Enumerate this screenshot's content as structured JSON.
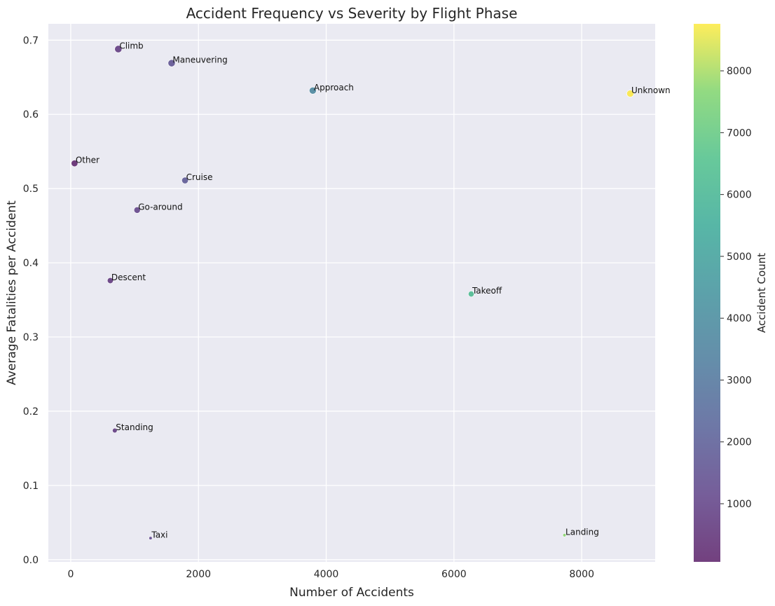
{
  "chart_data": {
    "type": "scatter",
    "title": "Accident Frequency vs Severity by Flight Phase",
    "xlabel": "Number of Accidents",
    "ylabel": "Average Fatalities per Accident",
    "xlim": [
      -350,
      9150
    ],
    "ylim": [
      -0.003,
      0.722
    ],
    "xticks": [
      0,
      2000,
      4000,
      6000,
      8000
    ],
    "yticks": [
      0.0,
      0.1,
      0.2,
      0.3,
      0.4,
      0.5,
      0.6,
      0.7
    ],
    "grid": true,
    "colorbar": {
      "label": "Accident Count",
      "colormap": "viridis",
      "range": [
        60,
        8760
      ],
      "ticks": [
        1000,
        2000,
        3000,
        4000,
        5000,
        6000,
        7000,
        8000
      ]
    },
    "points": [
      {
        "label": "Climb",
        "x": 745,
        "y": 0.688
      },
      {
        "label": "Maneuvering",
        "x": 1580,
        "y": 0.669
      },
      {
        "label": "Approach",
        "x": 3790,
        "y": 0.632
      },
      {
        "label": "Unknown",
        "x": 8760,
        "y": 0.628
      },
      {
        "label": "Other",
        "x": 60,
        "y": 0.534
      },
      {
        "label": "Cruise",
        "x": 1790,
        "y": 0.511
      },
      {
        "label": "Go-around",
        "x": 1040,
        "y": 0.471
      },
      {
        "label": "Descent",
        "x": 620,
        "y": 0.376
      },
      {
        "label": "Takeoff",
        "x": 6270,
        "y": 0.358
      },
      {
        "label": "Standing",
        "x": 690,
        "y": 0.174
      },
      {
        "label": "Taxi",
        "x": 1250,
        "y": 0.029
      },
      {
        "label": "Landing",
        "x": 7730,
        "y": 0.033
      }
    ]
  }
}
